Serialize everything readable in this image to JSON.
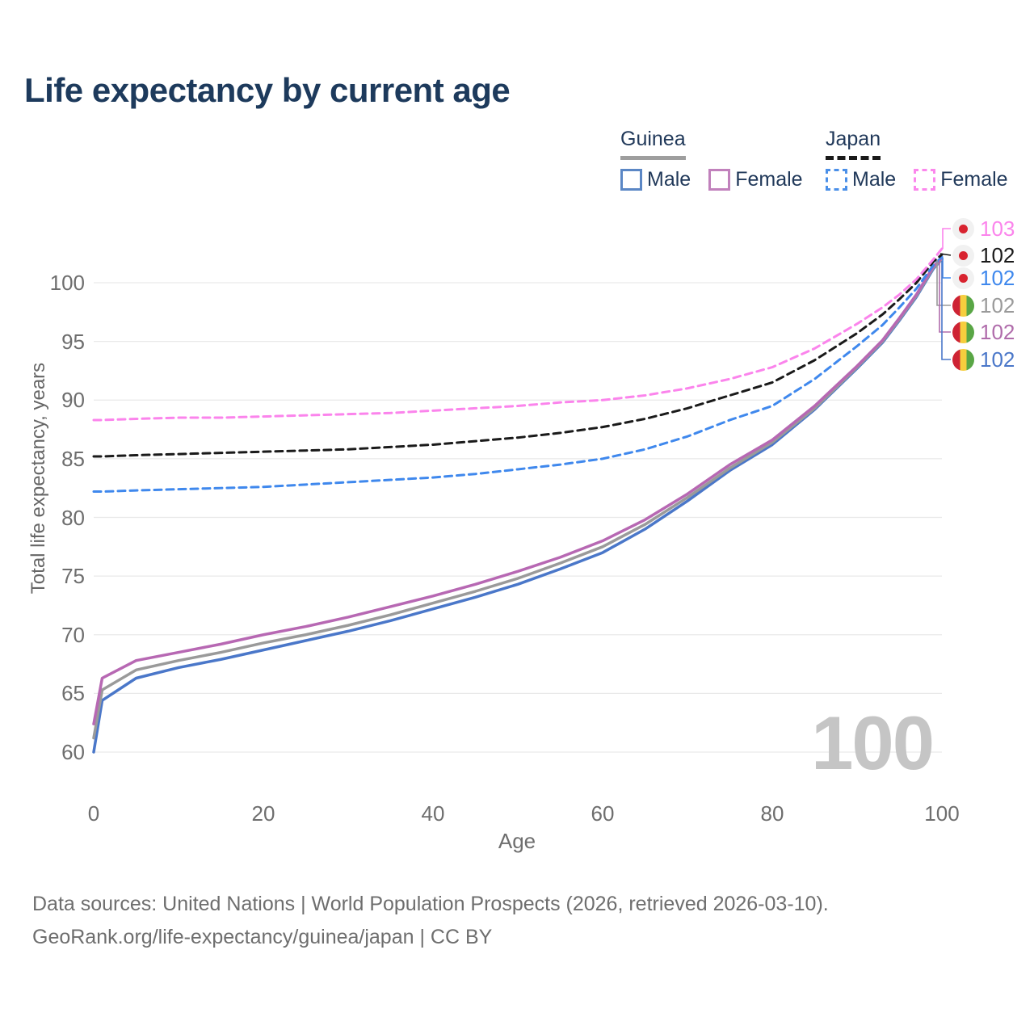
{
  "title": "Life expectancy by current age",
  "current_age_watermark": "100",
  "legend": {
    "groups": [
      {
        "country": "Guinea",
        "line_style": "solid",
        "line_color": "#9e9e9e",
        "items": [
          {
            "label": "Male",
            "color": "#5b87c5"
          },
          {
            "label": "Female",
            "color": "#c181bc"
          }
        ]
      },
      {
        "country": "Japan",
        "line_style": "dashed",
        "line_color": "#1a1a1a",
        "items": [
          {
            "label": "Male",
            "color": "#4a8fe8"
          },
          {
            "label": "Female",
            "color": "#fb87ec"
          }
        ]
      }
    ]
  },
  "end_labels": [
    {
      "value": "103",
      "flag": "japan",
      "color": "#fb84ec"
    },
    {
      "value": "102",
      "flag": "japan",
      "color": "#1a1a1a"
    },
    {
      "value": "102",
      "flag": "japan",
      "color": "#3f88ed"
    },
    {
      "value": "102",
      "flag": "guinea",
      "color": "#9a9a9a"
    },
    {
      "value": "102",
      "flag": "guinea",
      "color": "#b06cab"
    },
    {
      "value": "102",
      "flag": "guinea",
      "color": "#4a77c9"
    }
  ],
  "footer": {
    "line1": "Data sources: United Nations | World Population Prospects (2026, retrieved 2026-03-10).",
    "line2": "GeoRank.org/life-expectancy/guinea/japan | CC BY"
  },
  "chart_data": {
    "type": "line",
    "title": "Life expectancy by current age",
    "xlabel": "Age",
    "ylabel": "Total life expectancy, years",
    "xlim": [
      0,
      100
    ],
    "ylim": [
      57,
      104
    ],
    "xticks": [
      0,
      20,
      40,
      60,
      80,
      100
    ],
    "yticks": [
      60,
      65,
      70,
      75,
      80,
      85,
      90,
      95,
      100
    ],
    "grid": "horizontal",
    "legend_position": "top-right",
    "x": [
      0,
      1,
      5,
      10,
      15,
      20,
      25,
      30,
      35,
      40,
      45,
      50,
      55,
      60,
      65,
      70,
      75,
      80,
      85,
      90,
      93,
      95,
      97,
      99,
      100
    ],
    "series": [
      {
        "name": "Guinea Male",
        "country": "Guinea",
        "style": "solid",
        "color": "#4a77c9",
        "values": [
          60.0,
          64.4,
          66.3,
          67.2,
          67.9,
          68.7,
          69.5,
          70.3,
          71.2,
          72.2,
          73.2,
          74.3,
          75.6,
          77.0,
          79.0,
          81.4,
          84.0,
          86.2,
          89.2,
          92.7,
          94.9,
          96.8,
          98.8,
          101.2,
          102.0
        ]
      },
      {
        "name": "Guinea Both sexes",
        "country": "Guinea",
        "style": "solid",
        "color": "#9a9a9a",
        "values": [
          61.2,
          65.3,
          67.0,
          67.8,
          68.5,
          69.3,
          70.0,
          70.8,
          71.7,
          72.7,
          73.7,
          74.8,
          76.1,
          77.5,
          79.4,
          81.7,
          84.2,
          86.4,
          89.3,
          92.8,
          95.0,
          96.9,
          98.9,
          101.3,
          102.0
        ]
      },
      {
        "name": "Guinea Female",
        "country": "Guinea",
        "style": "solid",
        "color": "#b768b3",
        "values": [
          62.4,
          66.3,
          67.8,
          68.5,
          69.2,
          70.0,
          70.7,
          71.5,
          72.4,
          73.3,
          74.3,
          75.4,
          76.6,
          78.0,
          79.8,
          82.0,
          84.5,
          86.6,
          89.5,
          92.9,
          95.1,
          97.0,
          99.0,
          101.4,
          102.1
        ]
      },
      {
        "name": "Japan Male",
        "country": "Japan",
        "style": "dashed",
        "color": "#3f88ed",
        "values": [
          82.2,
          82.2,
          82.3,
          82.4,
          82.5,
          82.6,
          82.8,
          83.0,
          83.2,
          83.4,
          83.7,
          84.1,
          84.5,
          85.0,
          85.8,
          86.9,
          88.3,
          89.5,
          91.8,
          94.6,
          96.4,
          97.9,
          99.5,
          101.5,
          102.2
        ]
      },
      {
        "name": "Japan Both sexes",
        "country": "Japan",
        "style": "dashed",
        "color": "#1a1a1a",
        "values": [
          85.2,
          85.2,
          85.3,
          85.4,
          85.5,
          85.6,
          85.7,
          85.8,
          86.0,
          86.2,
          86.5,
          86.8,
          87.2,
          87.7,
          88.4,
          89.3,
          90.4,
          91.5,
          93.4,
          95.7,
          97.3,
          98.6,
          100.0,
          101.8,
          102.4
        ]
      },
      {
        "name": "Japan Female",
        "country": "Japan",
        "style": "dashed",
        "color": "#fb84ec",
        "values": [
          88.3,
          88.3,
          88.4,
          88.5,
          88.5,
          88.6,
          88.7,
          88.8,
          88.9,
          89.1,
          89.3,
          89.5,
          89.8,
          90.0,
          90.4,
          91.0,
          91.8,
          92.8,
          94.4,
          96.5,
          97.9,
          99.0,
          100.3,
          102.0,
          102.9
        ]
      }
    ]
  }
}
